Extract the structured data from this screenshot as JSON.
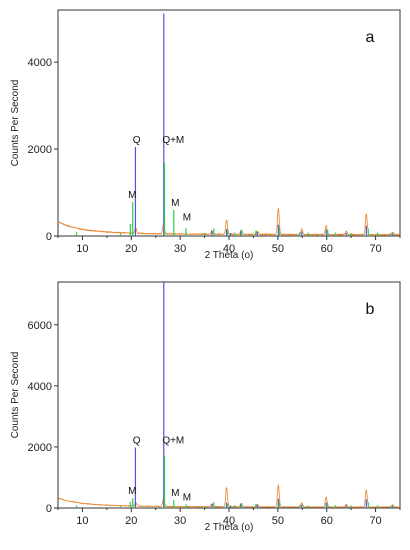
{
  "chart_data": [
    {
      "type": "line",
      "panel_label": "a",
      "xlabel": "2 Theta (o)",
      "ylabel": "Counts Per Second",
      "xlim": [
        5,
        75
      ],
      "ylim": [
        0,
        5200
      ],
      "x_ticks": [
        "10",
        "20",
        "30",
        "40",
        "50",
        "60",
        "70"
      ],
      "y_ticks": [
        "0",
        "2000",
        "4000"
      ],
      "grid": false,
      "colors": {
        "background": "#e9832a",
        "quartz": "#5a4fe0",
        "muscovite": "#22d24a",
        "axis": "#333333"
      },
      "background_curve": [
        [
          5,
          330
        ],
        [
          7,
          230
        ],
        [
          10,
          150
        ],
        [
          14,
          100
        ],
        [
          18,
          75
        ],
        [
          22,
          60
        ],
        [
          26,
          52
        ],
        [
          30,
          46
        ],
        [
          35,
          42
        ],
        [
          40,
          40
        ],
        [
          45,
          38
        ],
        [
          50,
          36
        ],
        [
          55,
          34
        ],
        [
          60,
          33
        ],
        [
          65,
          32
        ],
        [
          70,
          31
        ],
        [
          75,
          30
        ]
      ],
      "background_peaks": [
        [
          20.9,
          130
        ],
        [
          26.6,
          220
        ],
        [
          36.5,
          80
        ],
        [
          39.5,
          330
        ],
        [
          42.5,
          90
        ],
        [
          45.8,
          70
        ],
        [
          50.1,
          600
        ],
        [
          54.9,
          120
        ],
        [
          59.9,
          210
        ],
        [
          64.0,
          80
        ],
        [
          68.1,
          480
        ],
        [
          73.5,
          60
        ]
      ],
      "series": [
        {
          "key": "quartz",
          "peaks": [
            [
              20.85,
              2050
            ],
            [
              26.65,
              5120
            ],
            [
              36.5,
              120
            ],
            [
              39.5,
              160
            ],
            [
              40.3,
              70
            ],
            [
              42.4,
              110
            ],
            [
              45.8,
              90
            ],
            [
              50.1,
              260
            ],
            [
              54.9,
              100
            ],
            [
              59.9,
              150
            ],
            [
              64.0,
              70
            ],
            [
              68.1,
              240
            ],
            [
              73.5,
              60
            ]
          ]
        },
        {
          "key": "muscovite",
          "peaks": [
            [
              8.8,
              90
            ],
            [
              17.8,
              60
            ],
            [
              19.8,
              280
            ],
            [
              20.3,
              780
            ],
            [
              26.8,
              1680
            ],
            [
              28.7,
              600
            ],
            [
              31.2,
              180
            ],
            [
              35.0,
              70
            ],
            [
              36.9,
              170
            ],
            [
              39.7,
              150
            ],
            [
              41.2,
              80
            ],
            [
              42.6,
              140
            ],
            [
              45.5,
              120
            ],
            [
              50.3,
              200
            ],
            [
              54.5,
              90
            ],
            [
              56.2,
              80
            ],
            [
              60.2,
              140
            ],
            [
              61.8,
              80
            ],
            [
              65.0,
              70
            ],
            [
              68.5,
              170
            ],
            [
              70.4,
              80
            ],
            [
              73.2,
              70
            ]
          ]
        }
      ],
      "annotations": [
        {
          "text": "Q",
          "x": 21.1,
          "y": 2050
        },
        {
          "text": "Q+M",
          "x": 28.6,
          "y": 2050
        },
        {
          "text": "M",
          "x": 20.2,
          "y": 780
        },
        {
          "text": "M",
          "x": 29.0,
          "y": 600
        },
        {
          "text": "M",
          "x": 31.4,
          "y": 260
        }
      ]
    },
    {
      "type": "line",
      "panel_label": "b",
      "xlabel": "2 Theta (o)",
      "ylabel": "Counts Per Second",
      "xlim": [
        5,
        75
      ],
      "ylim": [
        0,
        7400
      ],
      "x_ticks": [
        "10",
        "20",
        "30",
        "40",
        "50",
        "60",
        "70"
      ],
      "y_ticks": [
        "0",
        "2000",
        "4000",
        "6000"
      ],
      "grid": false,
      "colors": {
        "background": "#e9832a",
        "quartz": "#5a4fe0",
        "muscovite": "#22d24a",
        "axis": "#333333"
      },
      "background_curve": [
        [
          5,
          330
        ],
        [
          7,
          230
        ],
        [
          10,
          150
        ],
        [
          14,
          100
        ],
        [
          18,
          75
        ],
        [
          22,
          60
        ],
        [
          26,
          52
        ],
        [
          30,
          46
        ],
        [
          35,
          42
        ],
        [
          40,
          40
        ],
        [
          45,
          38
        ],
        [
          50,
          36
        ],
        [
          55,
          34
        ],
        [
          60,
          33
        ],
        [
          65,
          32
        ],
        [
          70,
          31
        ],
        [
          75,
          30
        ]
      ],
      "background_peaks": [
        [
          20.9,
          120
        ],
        [
          26.6,
          260
        ],
        [
          36.5,
          90
        ],
        [
          39.5,
          620
        ],
        [
          42.5,
          110
        ],
        [
          45.8,
          80
        ],
        [
          50.1,
          720
        ],
        [
          54.9,
          140
        ],
        [
          59.9,
          330
        ],
        [
          64.0,
          90
        ],
        [
          68.1,
          560
        ],
        [
          73.5,
          70
        ]
      ],
      "series": [
        {
          "key": "quartz",
          "peaks": [
            [
              20.85,
              1980
            ],
            [
              26.65,
              7400
            ],
            [
              36.5,
              140
            ],
            [
              39.5,
              180
            ],
            [
              40.3,
              80
            ],
            [
              42.4,
              120
            ],
            [
              45.8,
              100
            ],
            [
              50.1,
              300
            ],
            [
              54.9,
              110
            ],
            [
              59.9,
              180
            ],
            [
              64.0,
              80
            ],
            [
              68.1,
              280
            ],
            [
              73.5,
              70
            ]
          ]
        },
        {
          "key": "muscovite",
          "peaks": [
            [
              8.8,
              80
            ],
            [
              17.8,
              60
            ],
            [
              19.8,
              200
            ],
            [
              20.3,
              320
            ],
            [
              26.8,
              1720
            ],
            [
              28.7,
              260
            ],
            [
              31.2,
              120
            ],
            [
              35.0,
              60
            ],
            [
              36.9,
              190
            ],
            [
              39.7,
              140
            ],
            [
              41.2,
              90
            ],
            [
              42.6,
              160
            ],
            [
              45.5,
              130
            ],
            [
              50.3,
              210
            ],
            [
              54.5,
              100
            ],
            [
              56.2,
              80
            ],
            [
              60.2,
              160
            ],
            [
              61.8,
              90
            ],
            [
              65.0,
              80
            ],
            [
              68.5,
              190
            ],
            [
              70.4,
              90
            ],
            [
              73.2,
              80
            ]
          ]
        }
      ],
      "annotations": [
        {
          "text": "Q",
          "x": 21.1,
          "y": 1980
        },
        {
          "text": "Q+M",
          "x": 28.6,
          "y": 1980
        },
        {
          "text": "M",
          "x": 20.2,
          "y": 320
        },
        {
          "text": "M",
          "x": 29.0,
          "y": 260
        },
        {
          "text": "M",
          "x": 31.4,
          "y": 120
        }
      ]
    }
  ]
}
